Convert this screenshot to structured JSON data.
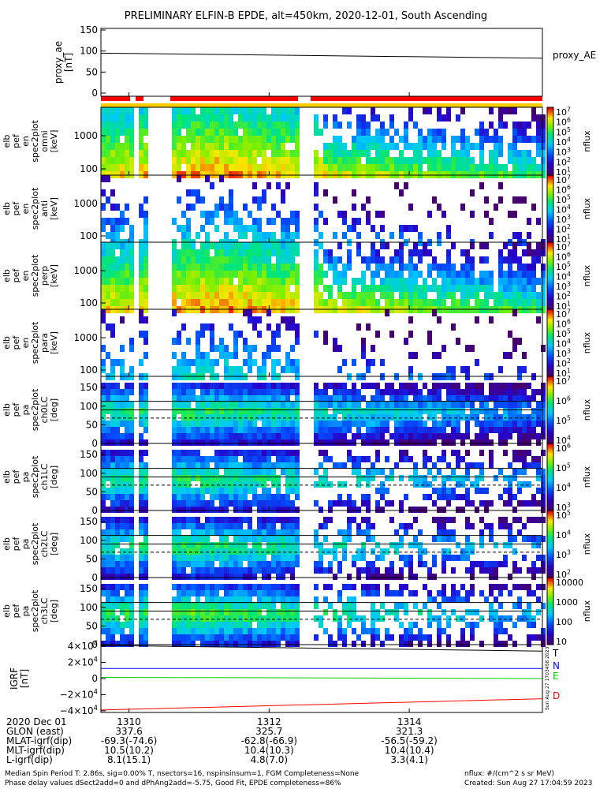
{
  "title": "PRELIMINARY ELFIN-B EPDE, alt=450km, 2020-12-01, South Ascending",
  "colors": {
    "bar_red": "#ff0000",
    "bar_yellow": "#ffcc00",
    "trace_black": "#000000",
    "trace_blue": "#0000ff",
    "trace_green": "#00cc00",
    "trace_red": "#ff0000"
  },
  "chart_data": [
    {
      "type": "line",
      "id": "proxy_ae",
      "ylabel_lines": [
        "proxy_ae",
        "[nT]"
      ],
      "yticks": [
        "150",
        "100",
        "50",
        "0"
      ],
      "ylim": [
        0,
        150
      ],
      "legend": "proxy_AE",
      "x": [
        1309.6,
        1315.9
      ],
      "values": [
        95,
        83
      ]
    },
    {
      "type": "heatmap",
      "id": "spec-omni",
      "ylabel_lines": [
        "elb",
        "pef",
        "en",
        "spec2plot",
        "omni",
        "[keV]"
      ],
      "yticks": [
        "1000",
        "100"
      ],
      "ylabel_sci": "log",
      "colorbar_ticks": [
        "10^7",
        "10^6",
        "10^5",
        "10^4",
        "10^3",
        "10^2",
        "10^1"
      ],
      "colorbar_label": "nflux"
    },
    {
      "type": "heatmap",
      "id": "spec-anti",
      "ylabel_lines": [
        "elb",
        "pef",
        "en",
        "spec2plot",
        "anti",
        "[keV]"
      ],
      "yticks": [
        "1000",
        "100"
      ],
      "colorbar_ticks": [
        "10^7",
        "10^6",
        "10^5",
        "10^4",
        "10^3",
        "10^2",
        "10^1"
      ],
      "colorbar_label": "nflux"
    },
    {
      "type": "heatmap",
      "id": "spec-perp",
      "ylabel_lines": [
        "elb",
        "pef",
        "en",
        "spec2plot",
        "perp",
        "[keV]"
      ],
      "yticks": [
        "1000",
        "100"
      ],
      "colorbar_ticks": [
        "10^7",
        "10^6",
        "10^5",
        "10^4",
        "10^3",
        "10^2",
        "10^1"
      ],
      "colorbar_label": "nflux"
    },
    {
      "type": "heatmap",
      "id": "spec-para",
      "ylabel_lines": [
        "elb",
        "pef",
        "en",
        "spec2plot",
        "para",
        "[keV]"
      ],
      "yticks": [
        "1000",
        "100"
      ],
      "colorbar_ticks": [
        "10^7",
        "10^6",
        "10^5",
        "10^4",
        "10^3",
        "10^2",
        "10^1"
      ],
      "colorbar_label": "nflux"
    },
    {
      "type": "heatmap",
      "id": "pa-ch0",
      "ylabel_lines": [
        "elb",
        "pef",
        "pa",
        "spec2plot",
        "ch0LC",
        "[deg]"
      ],
      "yticks": [
        "150",
        "100",
        "50",
        "0"
      ],
      "ylim": [
        0,
        180
      ],
      "colorbar_ticks": [
        "10^7",
        "10^6",
        "10^5",
        "10^4"
      ],
      "colorbar_label": "nflux"
    },
    {
      "type": "heatmap",
      "id": "pa-ch1",
      "ylabel_lines": [
        "elb",
        "pef",
        "pa",
        "spec2plot",
        "ch1LC",
        "[deg]"
      ],
      "yticks": [
        "150",
        "100",
        "50",
        "0"
      ],
      "ylim": [
        0,
        180
      ],
      "colorbar_ticks": [
        "10^6",
        "10^5",
        "10^4",
        "10^3"
      ],
      "colorbar_label": "nflux"
    },
    {
      "type": "heatmap",
      "id": "pa-ch2",
      "ylabel_lines": [
        "elb",
        "pef",
        "pa",
        "spec2plot",
        "ch2LC",
        "[deg]"
      ],
      "yticks": [
        "150",
        "100",
        "50",
        "0"
      ],
      "ylim": [
        0,
        180
      ],
      "colorbar_ticks": [
        "10^5",
        "10^4",
        "10^3",
        "10^2"
      ],
      "colorbar_label": "nflux"
    },
    {
      "type": "heatmap",
      "id": "pa-ch3",
      "ylabel_lines": [
        "elb",
        "pef",
        "pa",
        "spec2plot",
        "ch3LC",
        "[deg]"
      ],
      "yticks": [
        "150",
        "100",
        "50",
        "0"
      ],
      "ylim": [
        0,
        180
      ],
      "colorbar_ticks": [
        "10000",
        "1000",
        "100",
        "10"
      ],
      "colorbar_label": "nflux"
    },
    {
      "type": "line",
      "id": "igrf",
      "ylabel_lines": [
        "IGRF",
        "[nT]"
      ],
      "yticks": [
        "4×10^4",
        "2×10^4",
        "0",
        "−2×10^4",
        "−4×10^4"
      ],
      "ylim": [
        -42000,
        42000
      ],
      "series": [
        {
          "name": "T",
          "color": "#000000",
          "values": [
            41000,
            34000
          ]
        },
        {
          "name": "N",
          "color": "#0000ff",
          "values": [
            12500,
            12500
          ]
        },
        {
          "name": "E",
          "color": "#00cc00",
          "values": [
            1500,
            0
          ]
        },
        {
          "name": "D",
          "color": "#ff0000",
          "values": [
            -39000,
            -25000
          ]
        }
      ],
      "side_text": "Sun Aug 27 1703458 2023"
    }
  ],
  "xaxis": {
    "ticks": [
      "1310",
      "1312",
      "1314"
    ],
    "tick_minutes": [
      1310,
      1312,
      1314
    ],
    "rows": [
      {
        "label": "2020 Dec 01",
        "values": [
          "1310",
          "1312",
          "1314"
        ]
      },
      {
        "label": "GLON (east)",
        "values": [
          "337.6",
          "325.7",
          "321.3"
        ]
      },
      {
        "label": "MLAT-igrf(dip)",
        "values": [
          "-69.3(-74.6)",
          "-62.8(-66.9)",
          "-56.5(-59.2)"
        ]
      },
      {
        "label": "MLT-igrf(dip)",
        "values": [
          "10.5(10.2)",
          "10.4(10.3)",
          "10.4(10.4)"
        ]
      },
      {
        "label": "L-igrf(dip)",
        "values": [
          "8.1(15.1)",
          "4.8(7.0)",
          "3.3(4.1)"
        ]
      }
    ]
  },
  "footer": {
    "line1": "Median Spin Period T: 2.86s, sig=0.00% T, nsectors=16, nspinsinsum=1, FGM Completeness=None",
    "line2": "Phase delay values dSect2add=0 and dPhAng2add=-5.75, Good Fit, EPDE completeness=86%",
    "units": "nflux: #/(cm^2 s sr MeV)",
    "created": "Created: Sun Aug 27 17:04:59 2023"
  }
}
